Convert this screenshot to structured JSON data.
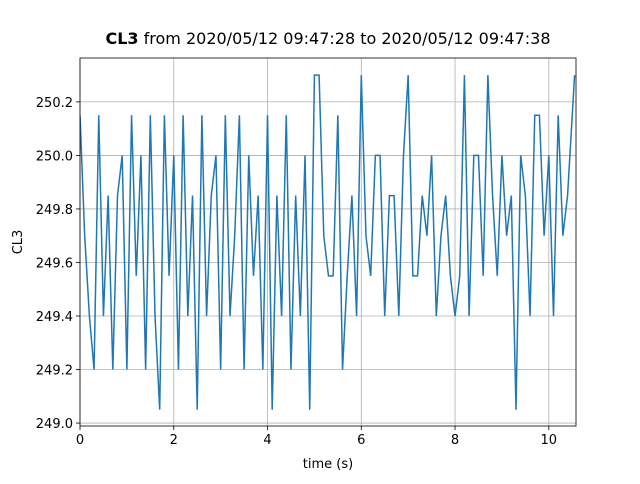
{
  "chart_data": {
    "type": "line",
    "title_bold": "CL3",
    "title": "from 2020/05/12 09:47:28 to 2020/05/12 09:47:38",
    "xlabel": "time (s)",
    "ylabel": "CL3",
    "x": [
      0,
      0.1,
      0.2,
      0.3,
      0.4,
      0.5,
      0.6,
      0.7,
      0.8,
      0.9,
      1,
      1.1,
      1.2,
      1.3,
      1.4,
      1.5,
      1.6,
      1.7,
      1.8,
      1.9,
      2,
      2.1,
      2.2,
      2.3,
      2.4,
      2.5,
      2.6,
      2.7,
      2.8,
      2.9,
      3,
      3.1,
      3.2,
      3.3,
      3.4,
      3.5,
      3.6,
      3.7,
      3.8,
      3.9,
      4,
      4.1,
      4.2,
      4.3,
      4.4,
      4.5,
      4.6,
      4.7,
      4.8,
      4.9,
      5,
      5.1,
      5.2,
      5.3,
      5.4,
      5.5,
      5.6,
      5.7,
      5.8,
      5.9,
      6,
      6.1,
      6.2,
      6.3,
      6.4,
      6.5,
      6.6,
      6.7,
      6.8,
      6.9,
      7,
      7.1,
      7.2,
      7.3,
      7.4,
      7.5,
      7.6,
      7.7,
      7.8,
      7.9,
      8,
      8.1,
      8.2,
      8.3,
      8.4,
      8.5,
      8.6,
      8.7,
      8.8,
      8.9,
      9,
      9.1,
      9.2,
      9.3,
      9.4,
      9.5,
      9.6,
      9.7,
      9.8,
      9.9,
      10,
      10.1,
      10.2,
      10.3,
      10.4,
      10.55
    ],
    "series": [
      {
        "name": "CL3",
        "color": "#1f77b4",
        "values": [
          250.15,
          249.7,
          249.4,
          249.2,
          250.15,
          249.4,
          249.85,
          249.2,
          249.85,
          250.0,
          249.2,
          250.15,
          249.55,
          250.0,
          249.2,
          250.15,
          249.4,
          249.05,
          250.15,
          249.55,
          250.0,
          249.2,
          250.15,
          249.4,
          249.85,
          249.05,
          250.15,
          249.4,
          249.85,
          250.0,
          249.2,
          250.15,
          249.4,
          249.7,
          250.15,
          249.2,
          250.0,
          249.55,
          249.85,
          249.2,
          250.15,
          249.05,
          249.85,
          249.4,
          250.15,
          249.2,
          249.85,
          249.4,
          250.0,
          249.05,
          250.3,
          250.3,
          249.7,
          249.55,
          249.55,
          250.15,
          249.2,
          249.55,
          249.85,
          249.4,
          250.3,
          249.7,
          249.55,
          250.0,
          250.0,
          249.4,
          249.85,
          249.85,
          249.4,
          250.0,
          250.3,
          249.55,
          249.55,
          249.85,
          249.7,
          250.0,
          249.4,
          249.7,
          249.85,
          249.55,
          249.4,
          249.55,
          250.3,
          249.4,
          250.0,
          250.0,
          249.55,
          250.3,
          249.85,
          249.55,
          250.0,
          249.7,
          249.85,
          249.05,
          250.0,
          249.85,
          249.4,
          250.15,
          250.15,
          249.7,
          250.0,
          249.4,
          250.15,
          249.7,
          249.85,
          250.3
        ]
      }
    ],
    "xlim": [
      0,
      10.58
    ],
    "ylim": [
      248.989,
      250.364
    ],
    "xticks": [
      0,
      2,
      4,
      6,
      8,
      10
    ],
    "yticks": [
      {
        "value": 249.0,
        "label": "249.0"
      },
      249.2,
      249.4,
      249.6,
      249.8,
      {
        "value": 250.0,
        "label": "250.0"
      },
      250.2
    ],
    "grid": true
  }
}
